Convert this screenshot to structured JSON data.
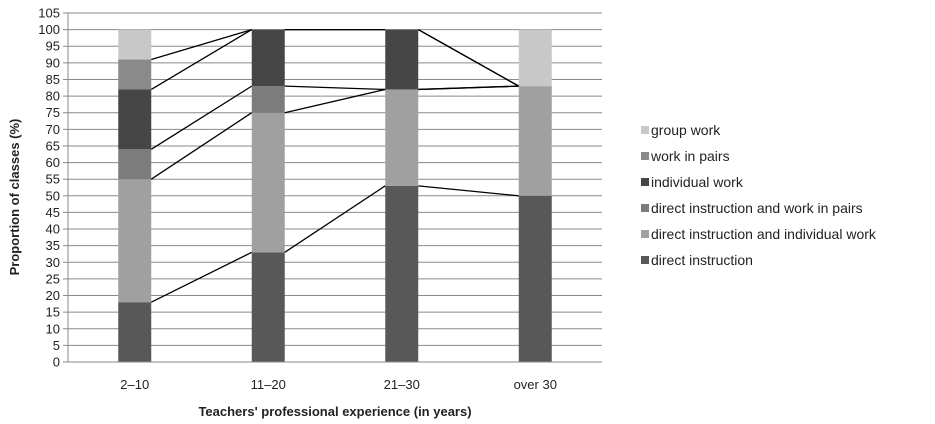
{
  "chart_data": {
    "type": "bar",
    "stacked": true,
    "categories": [
      "2–10",
      "11–20",
      "21–30",
      "over 30"
    ],
    "ylabel": "Proportion of classes (%)",
    "xlabel": "Teachers' professional experience (in years)",
    "ylim": [
      0,
      105
    ],
    "ytick_step": 5,
    "grid": true,
    "legend_position": "right",
    "series_lines": true,
    "series": [
      {
        "name": "direct instruction",
        "color": "#585858",
        "values": [
          18,
          33,
          53,
          50
        ]
      },
      {
        "name": "direct instruction and individual work",
        "color": "#a0a0a0",
        "values": [
          37,
          42,
          29,
          33
        ]
      },
      {
        "name": "direct instruction and work in pairs",
        "color": "#7c7c7c",
        "values": [
          9,
          8,
          0,
          0
        ]
      },
      {
        "name": "individual work",
        "color": "#464646",
        "values": [
          18,
          17,
          18,
          0
        ]
      },
      {
        "name": "work in pairs",
        "color": "#8a8a8a",
        "values": [
          9,
          0,
          0,
          0
        ]
      },
      {
        "name": "group work",
        "color": "#c8c8c8",
        "values": [
          9,
          0,
          0,
          17
        ]
      }
    ]
  }
}
